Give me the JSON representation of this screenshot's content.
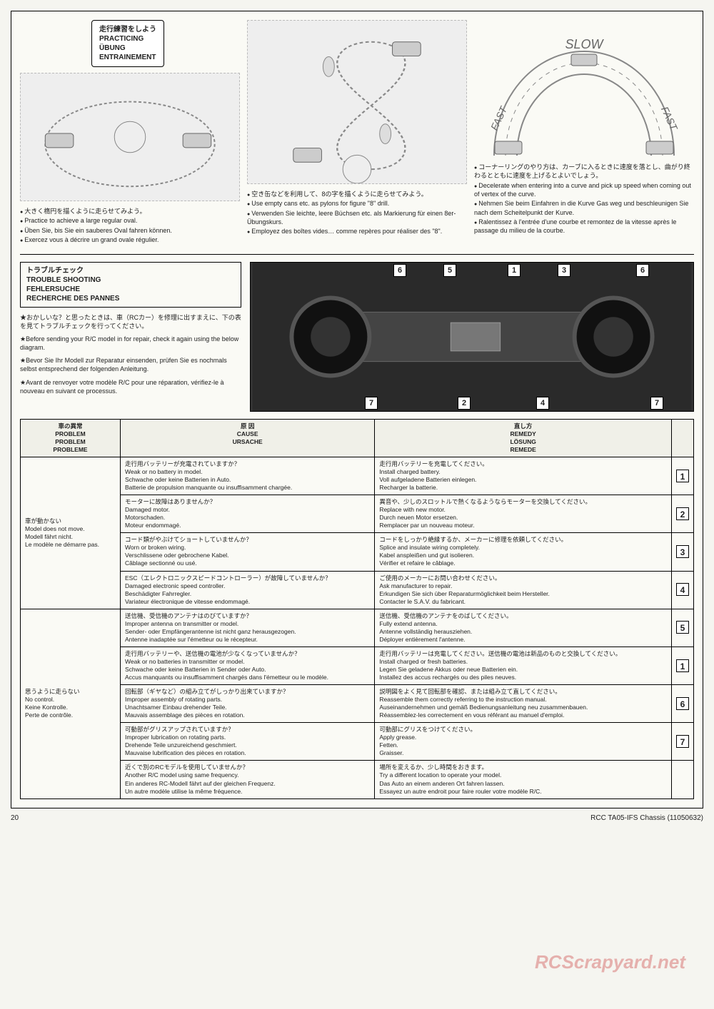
{
  "practicing_title": {
    "jp": "走行練習をしよう",
    "en": "PRACTICING",
    "de": "ÜBUNG",
    "fr": "ENTRAINEMENT"
  },
  "left_bullets": {
    "jp": "大きく楕円を描くように走らせてみよう。",
    "en": "Practice to achieve a large regular oval.",
    "de": "Üben Sie, bis Sie ein sauberes Oval fahren können.",
    "fr": "Exercez vous à décrire un grand ovale régulier."
  },
  "mid_bullets": {
    "jp": "空き缶などを利用して、8の字を描くように走らせてみよう。",
    "en": "Use empty cans etc. as pylons for figure \"8\" drill.",
    "de": "Verwenden Sie leichte, leere Büchsen etc. als Markierung für einen 8er-Übungskurs.",
    "fr": "Employez des boîtes vides… comme repères pour réaliser des \"8\"."
  },
  "right_bullets": {
    "jp": "コーナーリングのやり方は、カーブに入るときに速度を落とし、曲がり終わるとともに速度を上げるとよいでしょう。",
    "en": "Decelerate when entering into a curve and pick up speed when coming out of vertex of the curve.",
    "de": "Nehmen Sie beim Einfahren in die Kurve Gas weg und beschleunigen Sie nach dem Scheitelpunkt der Kurve.",
    "fr": "Ralentissez à l'entrée d'une courbe et remontez de la vitesse après le passage du milieu de la courbe."
  },
  "arc_labels": {
    "slow": "SLOW",
    "fast_l": "FAST",
    "fast_r": "FAST"
  },
  "trouble_title": {
    "jp": "トラブルチェック",
    "en": "TROUBLE SHOOTING",
    "de": "FEHLERSUCHE",
    "fr": "RECHERCHE DES PANNES"
  },
  "trouble_intro": {
    "jp": "★おかしいな？と思ったときは、車（RCカー）を修理に出すまえに、下の表を見てトラブルチェックを行ってください。",
    "en": "★Before sending your R/C model in for repair, check it again using the below diagram.",
    "de": "★Bevor Sie Ihr Modell zur Reparatur einsenden, prüfen Sie es nochmals selbst entsprechend der folgenden Anleitung.",
    "fr": "★Avant de renvoyer votre modèle R/C pour une réparation, vérifiez-le à nouveau en suivant ce processus."
  },
  "callouts_top": [
    "6",
    "5",
    "1",
    "3",
    "6"
  ],
  "callouts_bottom": [
    "7",
    "2",
    "4",
    "7"
  ],
  "table_headers": {
    "problem": {
      "jp": "車の異常",
      "en": "PROBLEM",
      "de": "PROBLEM",
      "fr": "PROBLEME"
    },
    "cause": {
      "jp": "原 因",
      "en": "CAUSE",
      "de": "URSACHE",
      "fr": ""
    },
    "remedy": {
      "jp": "直し方",
      "en": "REMEDY",
      "de": "LÖSUNG",
      "fr": "REMEDE"
    }
  },
  "group1_problem": {
    "jp": "車が動かない",
    "en": "Model does not move.",
    "de": "Modell fährt nicht.",
    "fr": "Le modèle ne démarre pas."
  },
  "group2_problem": {
    "jp": "思うように走らない",
    "en": "No control.",
    "de": "Keine Kontrolle.",
    "fr": "Perte de contrôle."
  },
  "rows": [
    {
      "cause": {
        "jp": "走行用バッテリーが充電されていますか？",
        "en": "Weak or no battery in model.",
        "de": "Schwache oder keine Batterien in Auto.",
        "fr": "Batterie de propulsion manquante ou insuffisamment chargée."
      },
      "remedy": {
        "jp": "走行用バッテリーを充電してください。",
        "en": "Install charged battery.",
        "de": "Voll aufgeladene Batterien einlegen.",
        "fr": "Recharger la batterie."
      },
      "num": "1"
    },
    {
      "cause": {
        "jp": "モーターに故障はありませんか？",
        "en": "Damaged motor.",
        "de": "Motorschaden.",
        "fr": "Moteur endommagé."
      },
      "remedy": {
        "jp": "異音や、少しのスロットルで熱くなるようならモーターを交換してください。",
        "en": "Replace with new motor.",
        "de": "Durch neuen Motor ersetzen.",
        "fr": "Remplacer par un nouveau moteur."
      },
      "num": "2"
    },
    {
      "cause": {
        "jp": "コード類がやぶけてショートしていませんか？",
        "en": "Worn or broken wiring.",
        "de": "Verschlissene oder gebrochene Kabel.",
        "fr": "Câblage sectionné ou usé."
      },
      "remedy": {
        "jp": "コードをしっかり絶縁するか、メーカーに修理を依頼してください。",
        "en": "Splice and insulate wiring completely.",
        "de": "Kabel anspleißen und gut isolieren.",
        "fr": "Vérifier et refaire le câblage."
      },
      "num": "3"
    },
    {
      "cause": {
        "jp": "ESC（エレクトロニックスピードコントローラー）が故障していませんか？",
        "en": "Damaged electronic speed controller.",
        "de": "Beschädigter Fahrregler.",
        "fr": "Variateur électronique de vitesse endommagé."
      },
      "remedy": {
        "jp": "ご使用のメーカーにお問い合わせください。",
        "en": "Ask manufacturer to repair.",
        "de": "Erkundigen Sie sich über Reparaturmöglichkeit beim Hersteller.",
        "fr": "Contacter le S.A.V. du fabricant."
      },
      "num": "4"
    },
    {
      "cause": {
        "jp": "送信機、受信機のアンテナはのびていますか？",
        "en": "Improper antenna on transmitter or model.",
        "de": "Sender- oder Empfängerantenne ist nicht ganz herausgezogen.",
        "fr": "Antenne inadaptée sur l'émetteur ou le récepteur."
      },
      "remedy": {
        "jp": "送信機、受信機のアンテナをのばしてください。",
        "en": "Fully extend antenna.",
        "de": "Antenne vollständig herausziehen.",
        "fr": "Déployer entièrement l'antenne."
      },
      "num": "5"
    },
    {
      "cause": {
        "jp": "走行用バッテリーや、送信機の電池が少なくなっていませんか？",
        "en": "Weak or no batteries in transmitter or model.",
        "de": "Schwache oder keine Batterien in Sender oder Auto.",
        "fr": "Accus manquants ou insuffisamment chargés dans l'émetteur ou le modèle."
      },
      "remedy": {
        "jp": "走行用バッテリーは充電してください。送信機の電池は新品のものと交換してください。",
        "en": "Install charged or fresh batteries.",
        "de": "Legen Sie geladene Akkus oder neue Batterien ein.",
        "fr": "Installez des accus rechargés ou des piles neuves."
      },
      "num": "1"
    },
    {
      "cause": {
        "jp": "回転部（ギヤなど）の組み立てがしっかり出来ていますか？",
        "en": "Improper assembly of rotating parts.",
        "de": "Unachtsamer Einbau drehender Teile.",
        "fr": "Mauvais assemblage des pièces en rotation."
      },
      "remedy": {
        "jp": "説明図をよく見て回転部を確認、または組み立て直してください。",
        "en": "Reassemble them correctly referring to the instruction manual.",
        "de": "Auseinandernehmen und gemäß Bedienungsanleitung neu zusammenbauen.",
        "fr": "Réassemblez-les correctement en vous référant au manuel d'emploi."
      },
      "num": "6"
    },
    {
      "cause": {
        "jp": "可動部がグリスアップされていますか？",
        "en": "Improper lubrication on rotating parts.",
        "de": "Drehende Teile unzureichend geschmiert.",
        "fr": "Mauvaise lubrification des pièces en rotation."
      },
      "remedy": {
        "jp": "可動部にグリスをつけてください。",
        "en": "Apply grease.",
        "de": "Fetten.",
        "fr": "Graisser."
      },
      "num": "7"
    },
    {
      "cause": {
        "jp": "近くで別のRCモデルを使用していませんか？",
        "en": "Another R/C model using same frequency.",
        "de": "Ein anderes RC-Modell fährt auf der gleichen Frequenz.",
        "fr": "Un autre modèle utilise la même fréquence."
      },
      "remedy": {
        "jp": "場所を変えるか、少し時間をおきます。",
        "en": "Try a different location to operate your model.",
        "de": "Das Auto an einem anderen Ort fahren lassen.",
        "fr": "Essayez un autre endroit pour faire rouler votre modèle R/C."
      },
      "num": ""
    }
  ],
  "footer": {
    "page": "20",
    "ref": "RCC TA05-IFS Chassis (11050632)"
  },
  "watermark": "RCScrapyard.net"
}
